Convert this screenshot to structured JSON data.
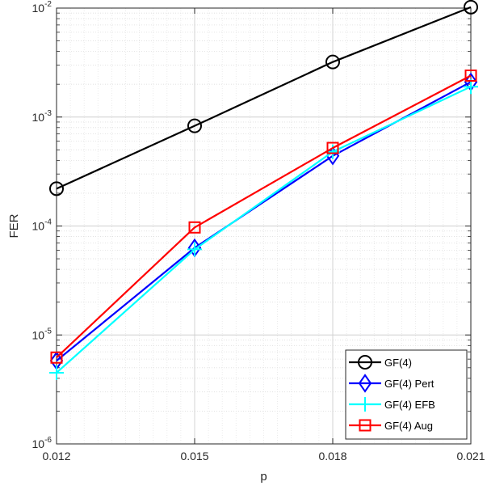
{
  "chart_data": {
    "type": "line",
    "title": "",
    "xlabel": "p",
    "ylabel": "FER",
    "x": [
      0.012,
      0.015,
      0.018,
      0.021
    ],
    "xticks": [
      "0.012",
      "0.015",
      "0.018",
      "0.021"
    ],
    "xlim": [
      0.012,
      0.021
    ],
    "yscale": "log",
    "ylim": [
      1e-06,
      0.01
    ],
    "yticks": [
      {
        "base": "10",
        "exp": "-6"
      },
      {
        "base": "10",
        "exp": "-5"
      },
      {
        "base": "10",
        "exp": "-4"
      },
      {
        "base": "10",
        "exp": "-3"
      },
      {
        "base": "10",
        "exp": "-2"
      }
    ],
    "grid": true,
    "minor_grid": true,
    "legend_position": "bottom-right",
    "series": [
      {
        "name": "GF(4)",
        "color": "#000000",
        "marker": "circle",
        "values": [
          0.00022,
          0.00083,
          0.0032,
          0.0102
        ]
      },
      {
        "name": "GF(4) Pert",
        "color": "#0000ff",
        "marker": "diamond",
        "values": [
          5.8e-06,
          6.3e-05,
          0.00044,
          0.0021
        ]
      },
      {
        "name": "GF(4) EFB",
        "color": "#00ffff",
        "marker": "plus",
        "values": [
          4.5e-06,
          6.1e-05,
          0.00048,
          0.0019
        ]
      },
      {
        "name": "GF(4) Aug",
        "color": "#ff0000",
        "marker": "square",
        "values": [
          6.2e-06,
          9.7e-05,
          0.00052,
          0.0024
        ]
      }
    ]
  }
}
